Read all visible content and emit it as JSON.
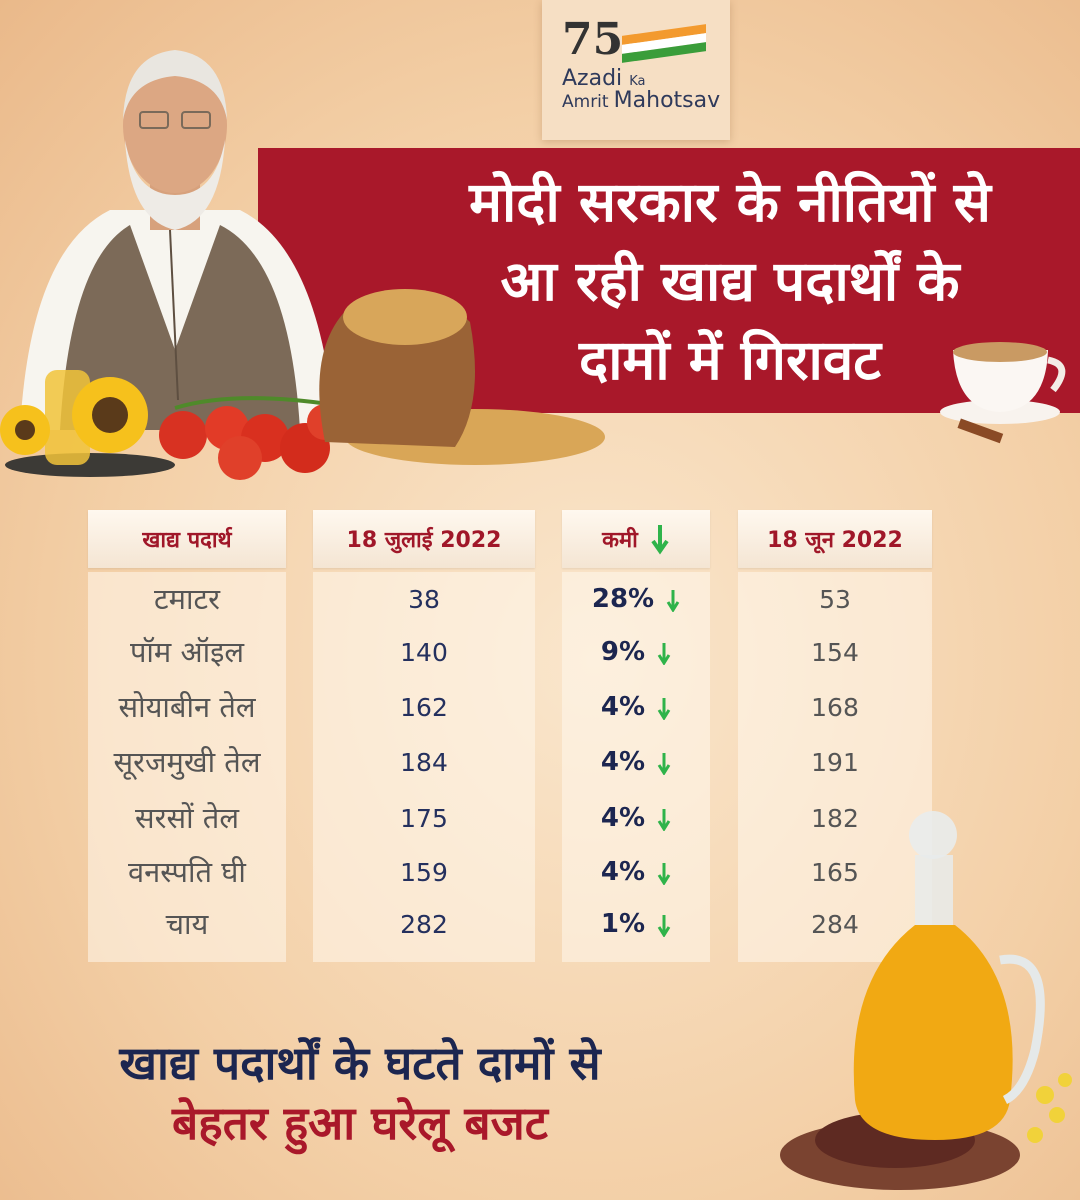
{
  "logo": {
    "number": "75",
    "line1": "Azadi",
    "ka": "Ka",
    "line2a": "Amrit",
    "line2b": "Mahotsav"
  },
  "headline": [
    "मोदी सरकार के नीतियों से",
    "आ रही खाद्य पदार्थों के",
    "दामों में गिरावट"
  ],
  "table": {
    "headers": {
      "food": "खाद्य पदार्थ",
      "july": "18 जुलाई 2022",
      "drop": "कमी",
      "june": "18 जून 2022"
    },
    "rows": [
      {
        "food": "टमाटर",
        "july": "38",
        "drop": "28%",
        "june": "53"
      },
      {
        "food": "पॉम ऑइल",
        "july": "140",
        "drop": "9%",
        "june": "154"
      },
      {
        "food": "सोयाबीन तेल",
        "july": "162",
        "drop": "4%",
        "june": "168"
      },
      {
        "food": "सूरजमुखी तेल",
        "july": "184",
        "drop": "4%",
        "june": "191"
      },
      {
        "food": "सरसों तेल",
        "july": "175",
        "drop": "4%",
        "june": "182"
      },
      {
        "food": "वनस्पति घी",
        "july": "159",
        "drop": "4%",
        "june": "165"
      },
      {
        "food": "चाय",
        "july": "282",
        "drop": "1%",
        "june": "284"
      }
    ]
  },
  "footer": {
    "line1": "खाद्य पदार्थों के घटते दामों से",
    "line2": "बेहतर हुआ घरेलू बजट"
  },
  "colors": {
    "banner": "#a9182a",
    "navy": "#1c2650",
    "arrow": "#2fb34a",
    "red": "#a01729"
  }
}
